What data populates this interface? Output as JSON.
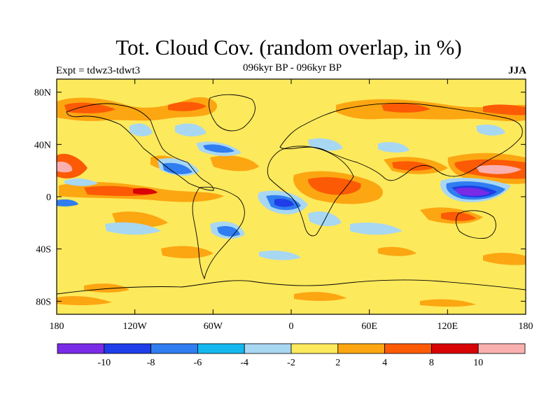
{
  "map": {
    "title": "Tot. Cloud Cov. (random overlap, in %)",
    "subtitle": "096kyr BP - 096kyr BP",
    "left_label": "Expt = tdwz3-tdwt3",
    "right_label": "JJA",
    "lat_ticks": [
      {
        "label": "80N",
        "lat": 80
      },
      {
        "label": "40N",
        "lat": 40
      },
      {
        "label": "0",
        "lat": 0
      },
      {
        "label": "40S",
        "lat": -40
      },
      {
        "label": "80S",
        "lat": -80
      }
    ],
    "lon_ticks": [
      {
        "label": "180",
        "lon": -180
      },
      {
        "label": "120W",
        "lon": -120
      },
      {
        "label": "60W",
        "lon": -60
      },
      {
        "label": "0",
        "lon": 0
      },
      {
        "label": "60E",
        "lon": 60
      },
      {
        "label": "120E",
        "lon": 120
      },
      {
        "label": "180",
        "lon": 180
      }
    ],
    "colorbar": {
      "colors": [
        "#7a2be6",
        "#1f3de8",
        "#2f7df0",
        "#14b8ee",
        "#a8d7f2",
        "#fde95c",
        "#fca612",
        "#fc5a05",
        "#d80303",
        "#fbb0b0"
      ],
      "labels": [
        "-10",
        "-8",
        "-6",
        "-4",
        "-2",
        "2",
        "4",
        "8",
        "10"
      ]
    },
    "background_color": "#fde95c"
  }
}
